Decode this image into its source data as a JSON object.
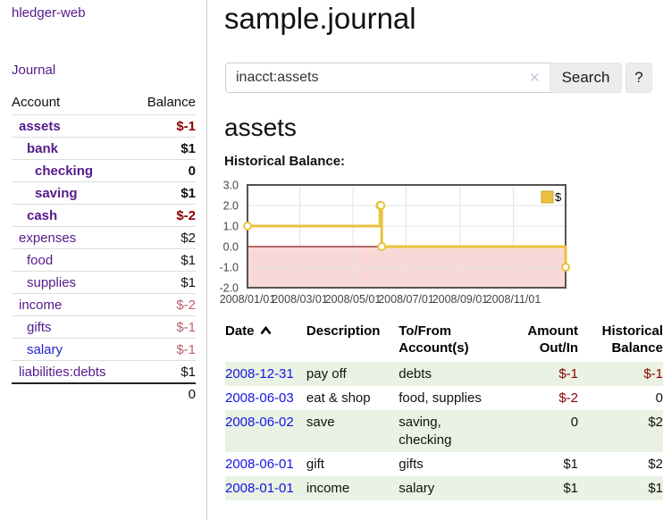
{
  "sidebar": {
    "app_title": "hledger-web",
    "journal_link": "Journal",
    "accounts_table": {
      "headers": {
        "account": "Account",
        "balance": "Balance"
      },
      "rows": [
        {
          "name": "assets",
          "indent": 1,
          "bold": true,
          "balance": "$-1",
          "balance_style": "neg-strong",
          "link_color": "purple"
        },
        {
          "name": "bank",
          "indent": 2,
          "bold": true,
          "balance": "$1",
          "balance_style": "pos",
          "link_color": "purple"
        },
        {
          "name": "checking",
          "indent": 3,
          "bold": true,
          "balance": "0",
          "balance_style": "pos",
          "link_color": "purple"
        },
        {
          "name": "saving",
          "indent": 3,
          "bold": true,
          "balance": "$1",
          "balance_style": "pos",
          "link_color": "purple"
        },
        {
          "name": "cash",
          "indent": 2,
          "bold": true,
          "balance": "$-2",
          "balance_style": "neg-strong",
          "link_color": "purple"
        },
        {
          "name": "expenses",
          "indent": 1,
          "bold": false,
          "balance": "$2",
          "balance_style": "pos",
          "link_color": "purple"
        },
        {
          "name": "food",
          "indent": 2,
          "bold": false,
          "balance": "$1",
          "balance_style": "pos",
          "link_color": "purple"
        },
        {
          "name": "supplies",
          "indent": 2,
          "bold": false,
          "balance": "$1",
          "balance_style": "pos",
          "link_color": "purple"
        },
        {
          "name": "income",
          "indent": 1,
          "bold": false,
          "balance": "$-2",
          "balance_style": "neg-muted",
          "link_color": "purple"
        },
        {
          "name": "gifts",
          "indent": 2,
          "bold": false,
          "balance": "$-1",
          "balance_style": "neg-muted",
          "link_color": "purple"
        },
        {
          "name": "salary",
          "indent": 2,
          "bold": false,
          "balance": "$-1",
          "balance_style": "neg-muted",
          "link_color": "blue"
        },
        {
          "name": "liabilities:debts",
          "indent": 1,
          "bold": false,
          "balance": "$1",
          "balance_style": "pos",
          "link_color": "purple"
        }
      ],
      "total": "0"
    }
  },
  "main": {
    "title": "sample.journal",
    "search": {
      "value": "inacct:assets",
      "clear_icon": "✕",
      "button_label": "Search",
      "help_label": "?"
    },
    "account_heading": "assets",
    "chart_heading": "Historical Balance:"
  },
  "chart_data": {
    "type": "line",
    "step": true,
    "title": "Historical Balance:",
    "legend": {
      "label": "$",
      "position": "top-right"
    },
    "ylim": [
      -2.0,
      3.0
    ],
    "y_ticks": [
      3.0,
      2.0,
      1.0,
      0.0,
      -1.0,
      -2.0
    ],
    "x_range_days": [
      0,
      365
    ],
    "x_ticks": [
      {
        "label": "2008/01/01",
        "day": 0
      },
      {
        "label": "2008/03/01",
        "day": 60
      },
      {
        "label": "2008/05/01",
        "day": 121
      },
      {
        "label": "2008/07/01",
        "day": 182
      },
      {
        "label": "2008/09/01",
        "day": 244
      },
      {
        "label": "2008/11/01",
        "day": 305
      }
    ],
    "series": [
      {
        "name": "$",
        "points": [
          {
            "date": "2008-01-01",
            "day": 0,
            "value": 1
          },
          {
            "date": "2008-06-01",
            "day": 152,
            "value": 2
          },
          {
            "date": "2008-06-02",
            "day": 153,
            "value": 2
          },
          {
            "date": "2008-06-03",
            "day": 154,
            "value": 0
          },
          {
            "date": "2008-12-31",
            "day": 365,
            "value": -1
          }
        ]
      }
    ],
    "line_color": "#e9c23e",
    "marker_fill": "#ffffff",
    "negative_region_fill": "#f9d8d8",
    "zero_line_color": "#8b1a1a",
    "grid_color": "#e4e4e4",
    "border_color": "#545454",
    "grid": true
  },
  "register_table": {
    "headers": {
      "date": "Date",
      "description": "Description",
      "accounts": "To/From Account(s)",
      "amount": "Amount Out/In",
      "balance": "Historical Balance"
    },
    "sort": {
      "column": "date",
      "direction": "asc"
    },
    "rows": [
      {
        "date": "2008-12-31",
        "description": "pay off",
        "accounts": "debts",
        "amount": "$-1",
        "amount_neg": true,
        "balance": "$-1",
        "balance_neg": true,
        "shaded": true
      },
      {
        "date": "2008-06-03",
        "description": "eat & shop",
        "accounts": "food, supplies",
        "amount": "$-2",
        "amount_neg": true,
        "balance": "0",
        "balance_neg": false,
        "shaded": false
      },
      {
        "date": "2008-06-02",
        "description": "save",
        "accounts": "saving, checking",
        "amount": "0",
        "amount_neg": false,
        "balance": "$2",
        "balance_neg": false,
        "shaded": true
      },
      {
        "date": "2008-06-01",
        "description": "gift",
        "accounts": "gifts",
        "amount": "$1",
        "amount_neg": false,
        "balance": "$2",
        "balance_neg": false,
        "shaded": false
      },
      {
        "date": "2008-01-01",
        "description": "income",
        "accounts": "salary",
        "amount": "$1",
        "amount_neg": false,
        "balance": "$1",
        "balance_neg": false,
        "shaded": true
      }
    ]
  },
  "colors": {
    "link_purple": "#551A8B",
    "link_blue": "#1414e6",
    "negative_strong": "#8b0000",
    "negative_muted": "#b95f6e",
    "row_shade_green": "#e9f2e3",
    "chart_line_gold": "#e9c23e",
    "chart_negative_pink": "#f9d8d8"
  }
}
